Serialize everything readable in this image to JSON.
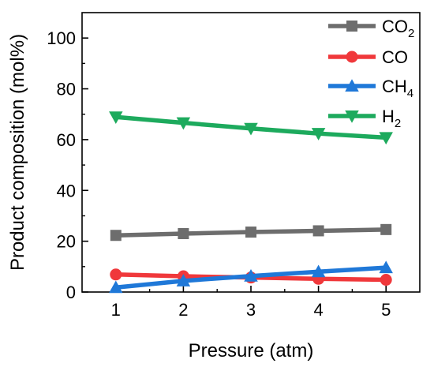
{
  "chart_data": {
    "type": "line",
    "title": "",
    "xlabel": "Pressure (atm)",
    "ylabel": "Product composition (mol%)",
    "x": [
      1,
      2,
      3,
      4,
      5
    ],
    "xlim": [
      0.5,
      5.5
    ],
    "ylim": [
      0,
      110
    ],
    "x_ticks": [
      1,
      2,
      3,
      4,
      5
    ],
    "y_ticks": [
      0,
      20,
      40,
      60,
      80,
      100
    ],
    "y_minor_ticks": [
      10,
      30,
      50,
      70,
      90
    ],
    "grid": false,
    "legend_position": "top-right",
    "series": [
      {
        "name": "CO",
        "name_base": "CO",
        "name_sub": "2",
        "color": "#6d6d6d",
        "marker": "square",
        "values": [
          22.3,
          23.0,
          23.6,
          24.1,
          24.6
        ]
      },
      {
        "name": "CO",
        "name_base": "CO",
        "name_sub": "",
        "color": "#f0383b",
        "marker": "circle",
        "values": [
          6.9,
          6.2,
          5.7,
          5.2,
          4.8
        ]
      },
      {
        "name": "CH",
        "name_base": "CH",
        "name_sub": "4",
        "color": "#1f78d8",
        "marker": "triangle-up",
        "values": [
          1.8,
          4.4,
          6.3,
          8.0,
          9.6
        ]
      },
      {
        "name": "H",
        "name_base": "H",
        "name_sub": "2",
        "color": "#1daa5d",
        "marker": "triangle-down",
        "values": [
          68.9,
          66.6,
          64.4,
          62.4,
          60.8
        ]
      }
    ]
  }
}
